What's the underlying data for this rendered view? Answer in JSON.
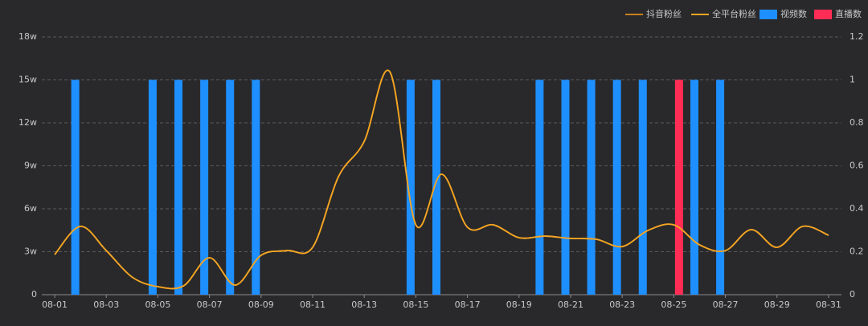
{
  "chart_data": {
    "type": "bar-line",
    "categories": [
      "08-01",
      null,
      "08-03",
      null,
      "08-05",
      null,
      "08-07",
      null,
      "08-09",
      null,
      "08-11",
      null,
      "08-13",
      null,
      "08-15",
      null,
      "08-17",
      null,
      "08-19",
      null,
      "08-21",
      null,
      "08-23",
      null,
      "08-25",
      null,
      "08-27",
      null,
      "08-29",
      null,
      "08-31"
    ],
    "series": [
      {
        "name": "抖音粉丝",
        "kind": "line",
        "color": "#c9801e",
        "values": [
          28000,
          47700,
          30800,
          12300,
          5600,
          6200,
          25800,
          6700,
          27500,
          30800,
          33100,
          82400,
          107100,
          155400,
          48800,
          84100,
          47100,
          48800,
          39800,
          40900,
          39300,
          38700,
          33600,
          44900,
          48800,
          34800,
          30800,
          45400,
          33100,
          47700,
          41500
        ]
      },
      {
        "name": "全平台粉丝",
        "kind": "line",
        "color": "#f5a623",
        "values": [
          28000,
          47700,
          30800,
          12300,
          5600,
          6200,
          25800,
          6700,
          27500,
          30800,
          33100,
          82400,
          107100,
          155400,
          48800,
          84100,
          47100,
          48800,
          39800,
          40900,
          39300,
          38700,
          33600,
          44900,
          48800,
          34800,
          30800,
          45400,
          33100,
          47700,
          41500
        ]
      },
      {
        "name": "视频数",
        "kind": "bar",
        "axis": "y2",
        "color": "#1e8fff",
        "values": [
          0,
          1,
          0,
          0,
          1,
          1,
          1,
          1,
          1,
          0,
          0,
          0,
          0,
          0,
          1,
          1,
          0,
          0,
          0,
          1,
          1,
          1,
          1,
          1,
          0,
          1,
          1,
          0,
          0,
          0,
          0
        ]
      },
      {
        "name": "直播数",
        "kind": "bar",
        "axis": "y2",
        "color": "#ff2d55",
        "values": [
          0,
          0,
          0,
          0,
          0,
          0,
          0,
          0,
          0,
          0,
          0,
          0,
          0,
          0,
          0,
          0,
          0,
          0,
          0,
          0,
          0,
          0,
          0,
          0,
          1,
          0,
          0,
          0,
          0,
          0,
          0
        ]
      }
    ],
    "ylim": [
      0,
      180000
    ],
    "yticks": [
      0,
      {
        "value": 30000,
        "label": "3w"
      },
      {
        "value": 60000,
        "label": "6w"
      },
      {
        "value": 90000,
        "label": "9w"
      },
      {
        "value": 120000,
        "label": "12w"
      },
      {
        "value": 150000,
        "label": "15w"
      },
      {
        "value": 180000,
        "label": "18w"
      }
    ],
    "y2lim": [
      0,
      1.2
    ],
    "y2ticks": [
      0,
      0.2,
      0.4,
      0.6,
      0.8,
      1,
      1.2
    ],
    "grid": true
  }
}
